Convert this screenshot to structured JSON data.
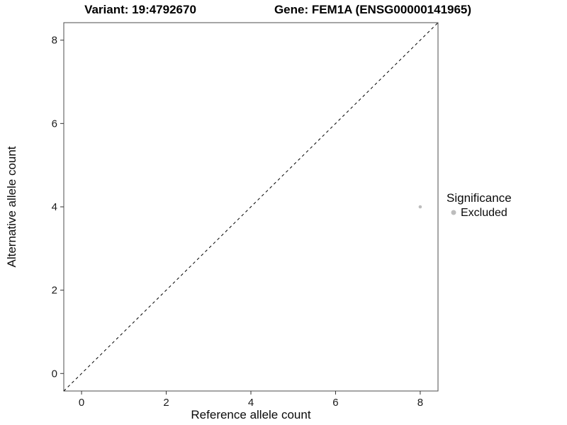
{
  "chart_data": {
    "type": "scatter",
    "titles": {
      "left": "Variant: 19:4792670",
      "right": "Gene: FEM1A (ENSG00000141965)"
    },
    "xlabel": "Reference allele count",
    "ylabel": "Alternative allele count",
    "xlim": [
      -0.42,
      8.42
    ],
    "ylim": [
      -0.42,
      8.42
    ],
    "xticks": [
      0,
      2,
      4,
      6,
      8
    ],
    "yticks": [
      0,
      2,
      4,
      6,
      8
    ],
    "grid": false,
    "panel": {
      "background": "#ffffff",
      "border_color": "#4d4d4d",
      "tick_color": "#333333"
    },
    "reference_line": {
      "type": "identity",
      "slope": 1,
      "intercept": 0,
      "style": "dashed",
      "color": "#000000"
    },
    "points": [
      {
        "x": 8,
        "y": 4,
        "significance": "Excluded"
      }
    ],
    "legend": {
      "title": "Significance",
      "position": "right",
      "entries": [
        {
          "label": "Excluded",
          "color": "#bdbdbd"
        }
      ]
    }
  }
}
